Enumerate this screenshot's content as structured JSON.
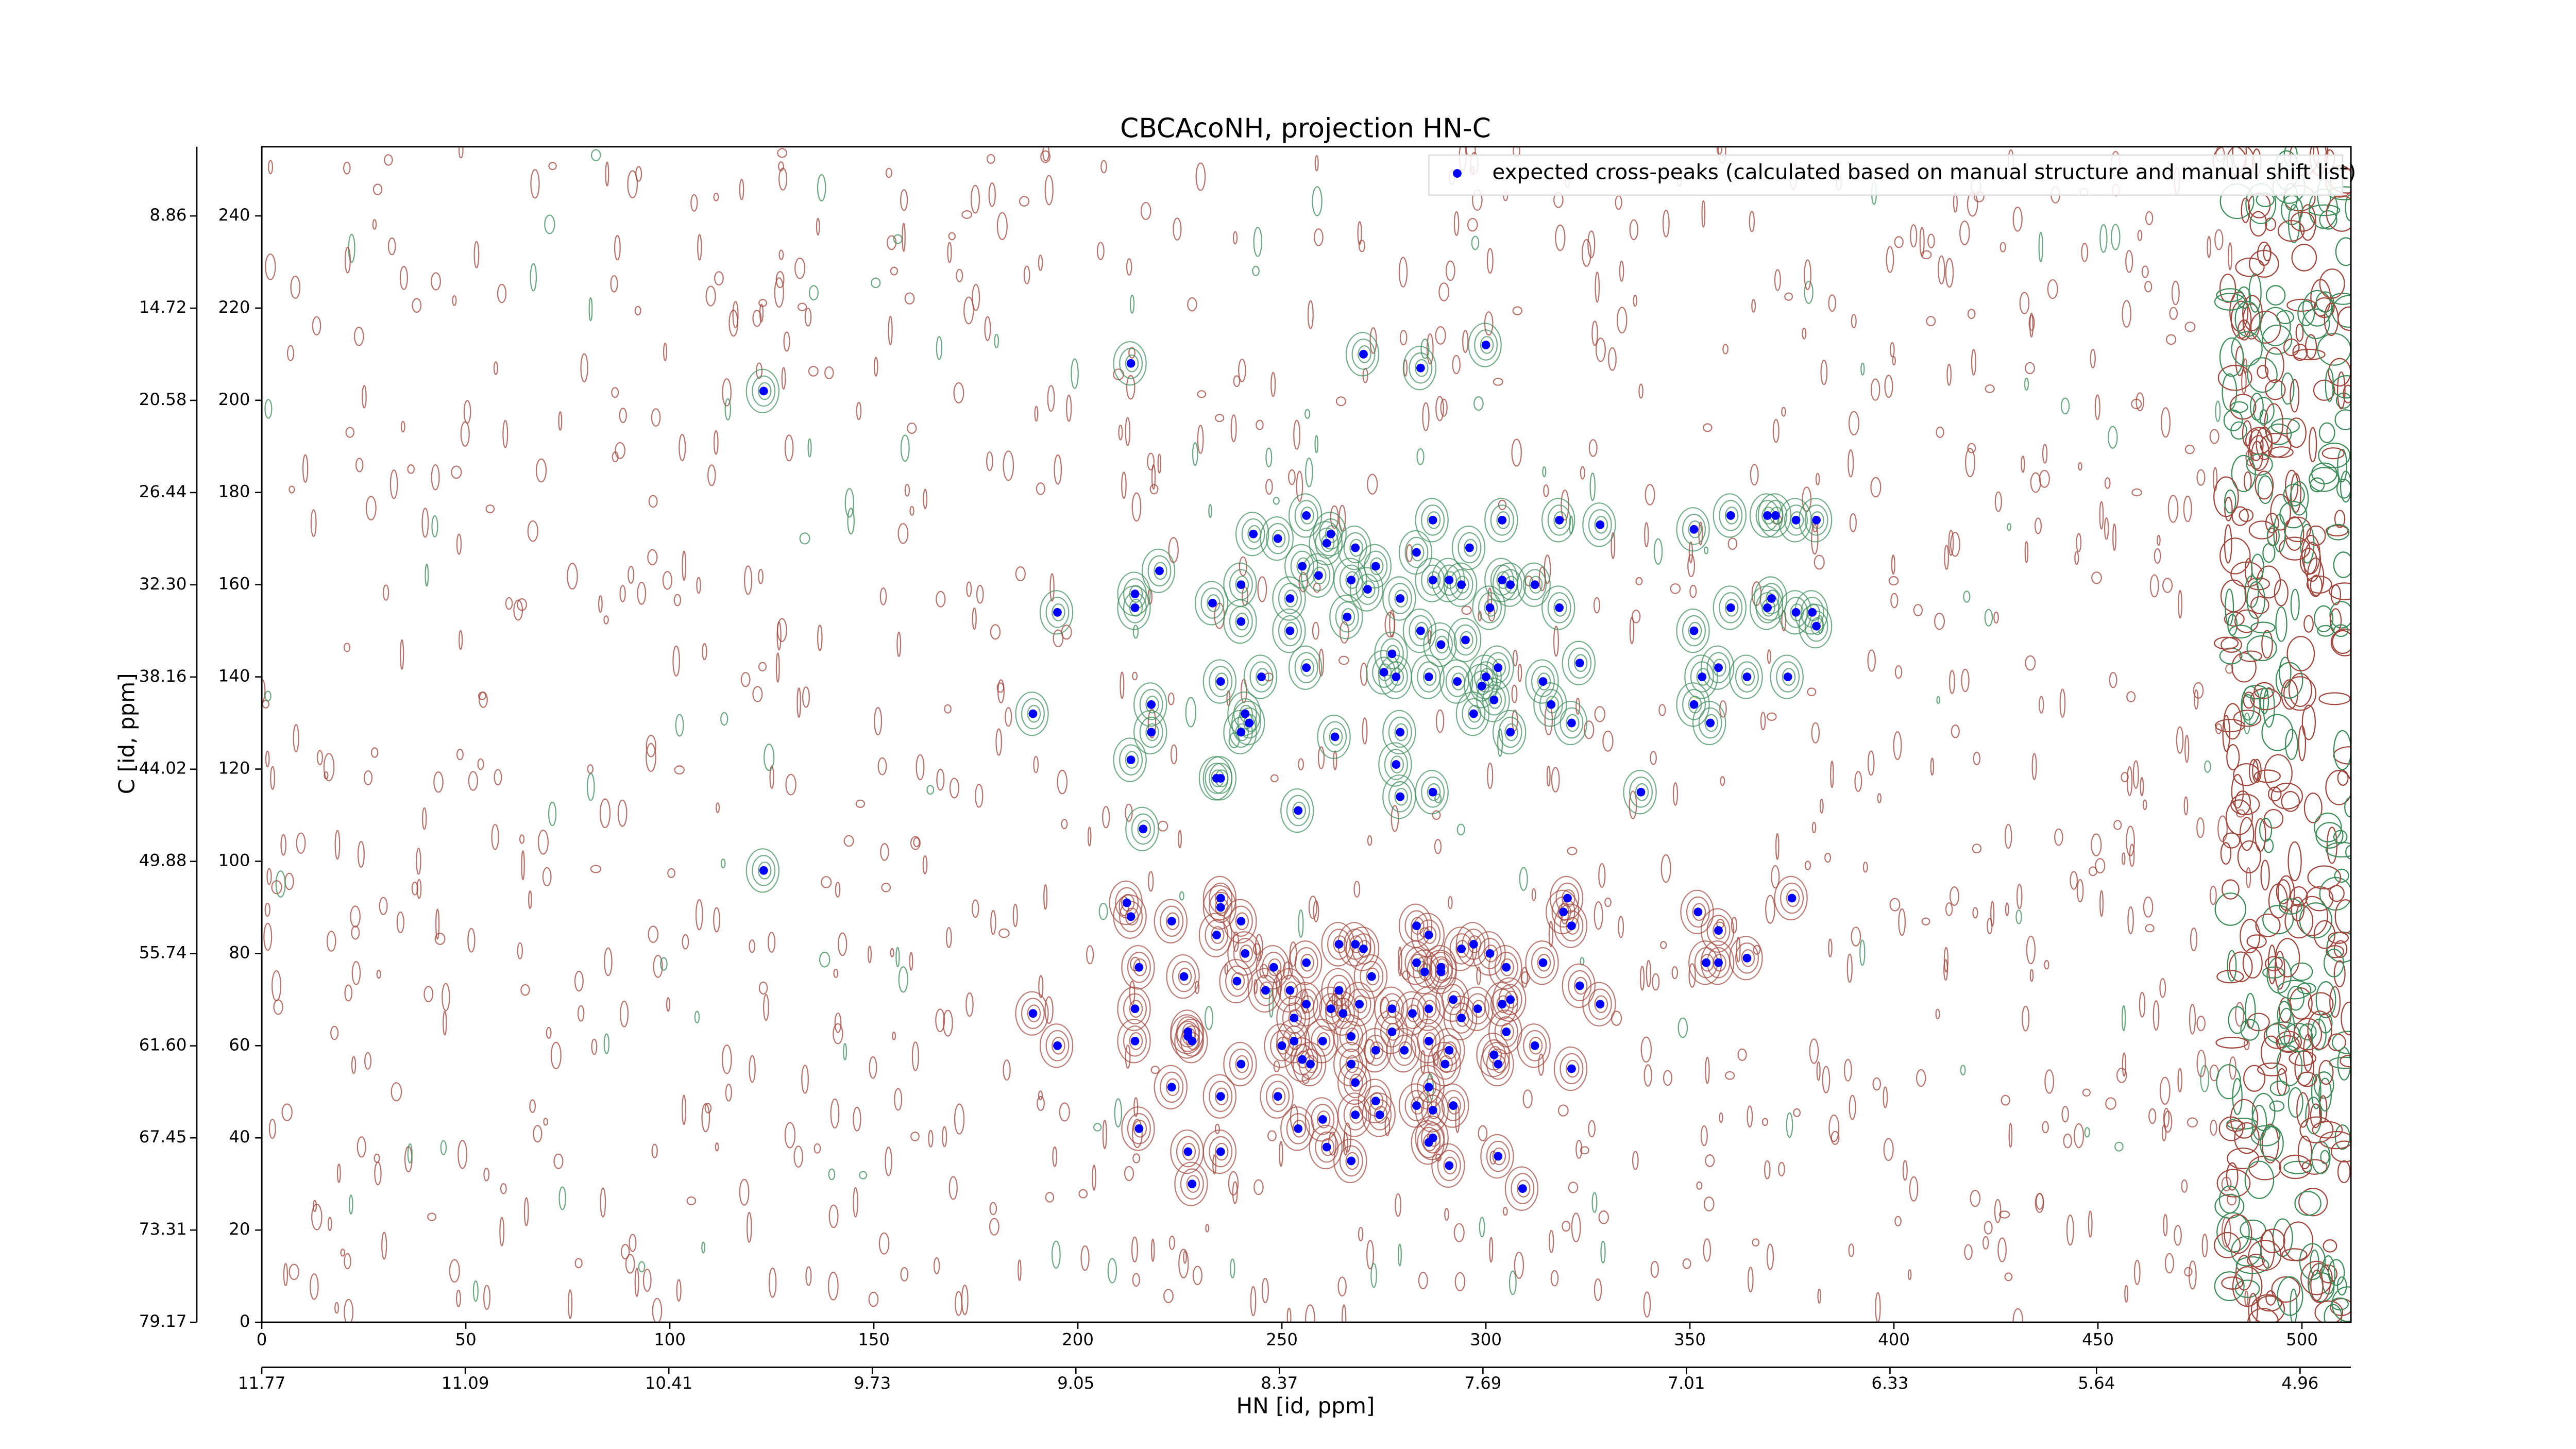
{
  "chart_data": {
    "type": "scatter",
    "title": "CBCAcoNH, projection HN-C",
    "xlabel": "HN [id, ppm]",
    "ylabel": "C [id, ppm]",
    "xlim": [
      0,
      512
    ],
    "xticks": [
      0,
      50,
      100,
      150,
      200,
      250,
      300,
      350,
      400,
      450,
      500
    ],
    "ylim": [
      0,
      255
    ],
    "yticks": [
      0,
      20,
      40,
      60,
      80,
      100,
      120,
      140,
      160,
      180,
      200,
      220,
      240
    ],
    "x2lim": [
      11.77,
      4.79
    ],
    "x2ticks": [
      11.77,
      11.09,
      10.41,
      9.73,
      9.05,
      8.37,
      7.69,
      7.01,
      6.33,
      5.64,
      4.96
    ],
    "y2lim": [
      79.17,
      4.46
    ],
    "y2ticks": [
      79.17,
      73.31,
      67.45,
      {
        "value": 61.6,
        "label": "61.60"
      },
      55.74,
      49.88,
      44.02,
      38.16,
      {
        "value": 32.3,
        "label": "32.30"
      },
      26.44,
      20.58,
      14.72,
      8.86
    ],
    "legend": "upper right",
    "series": [
      {
        "name": "expected cross-peaks (calculated based on manual structure and manual shift list)",
        "color": "#0000ff",
        "x": [
          123,
          213,
          270,
          284,
          300,
          351,
          360,
          369,
          371,
          376,
          381,
          328,
          318,
          287,
          304,
          296,
          256,
          249,
          243,
          262,
          261,
          268,
          255,
          259,
          267,
          273,
          283,
          287,
          294,
          291,
          306,
          304,
          312,
          240,
          233,
          214,
          214,
          195,
          220,
          271,
          252,
          266,
          279,
          252,
          240,
          318,
          351,
          360,
          369,
          370,
          376,
          381,
          380,
          301,
          295,
          289,
          284,
          277,
          278,
          275,
          286,
          293,
          300,
          303,
          299,
          302,
          297,
          306,
          314,
          323,
          256,
          245,
          235,
          353,
          357,
          364,
          374,
          351,
          355,
          189,
          218,
          218,
          240,
          242,
          241,
          263,
          279,
          316,
          321,
          278,
          213,
          234,
          235,
          254,
          279,
          287,
          338,
          216,
          123,
          212,
          213,
          223,
          235,
          235,
          240,
          234,
          241,
          248,
          256,
          264,
          270,
          268,
          272,
          283,
          286,
          283,
          289,
          289,
          285,
          294,
          297,
          301,
          305,
          314,
          320,
          321,
          319,
          352,
          357,
          354,
          357,
          364,
          375,
          323,
          328,
          189,
          195,
          214,
          215,
          226,
          239,
          246,
          252,
          264,
          262,
          269,
          265,
          256,
          253,
          277,
          282,
          286,
          292,
          294,
          298,
          304,
          306,
          253,
          250,
          257,
          260,
          267,
          273,
          267,
          277,
          280,
          286,
          291,
          305,
          312,
          302,
          303,
          290,
          286,
          227,
          228,
          214,
          227,
          240,
          255,
          223,
          235,
          249,
          260,
          268,
          273,
          274,
          283,
          287,
          292,
          321,
          268,
          286,
          261,
          254,
          287,
          215,
          227,
          228,
          235,
          267,
          291,
          303,
          309
        ],
        "y": [
          202,
          208,
          210,
          207,
          212,
          172,
          175,
          175,
          175,
          174,
          174,
          173,
          174,
          174,
          174,
          168,
          175,
          170,
          171,
          171,
          169,
          168,
          164,
          162,
          161,
          164,
          167,
          161,
          160,
          161,
          160,
          161,
          160,
          160,
          156,
          158,
          155,
          154,
          163,
          159,
          157,
          153,
          157,
          150,
          152,
          155,
          150,
          155,
          155,
          157,
          154,
          151,
          154,
          155,
          148,
          147,
          150,
          145,
          140,
          141,
          140,
          139,
          140,
          142,
          138,
          135,
          132,
          128,
          139,
          143,
          142,
          140,
          139,
          140,
          142,
          140,
          140,
          134,
          130,
          132,
          134,
          128,
          128,
          130,
          132,
          127,
          128,
          134,
          130,
          121,
          122,
          118,
          118,
          111,
          114,
          115,
          115,
          107,
          98,
          91,
          88,
          87,
          92,
          90,
          87,
          84,
          80,
          77,
          78,
          82,
          81,
          82,
          75,
          86,
          84,
          78,
          77,
          76,
          76,
          81,
          82,
          80,
          77,
          78,
          92,
          86,
          89,
          89,
          85,
          78,
          78,
          79,
          92,
          73,
          69,
          67,
          60,
          68,
          77,
          75,
          74,
          72,
          72,
          72,
          68,
          69,
          67,
          69,
          66,
          68,
          67,
          68,
          70,
          66,
          68,
          69,
          70,
          61,
          60,
          56,
          61,
          62,
          59,
          56,
          63,
          59,
          61,
          59,
          63,
          60,
          58,
          56,
          56,
          51,
          62,
          61,
          61,
          63,
          56,
          57,
          51,
          49,
          49,
          44,
          52,
          48,
          45,
          47,
          46,
          47,
          55,
          45,
          39,
          38,
          42,
          40,
          42,
          37,
          30,
          37,
          35,
          34,
          36,
          29
        ]
      }
    ]
  }
}
